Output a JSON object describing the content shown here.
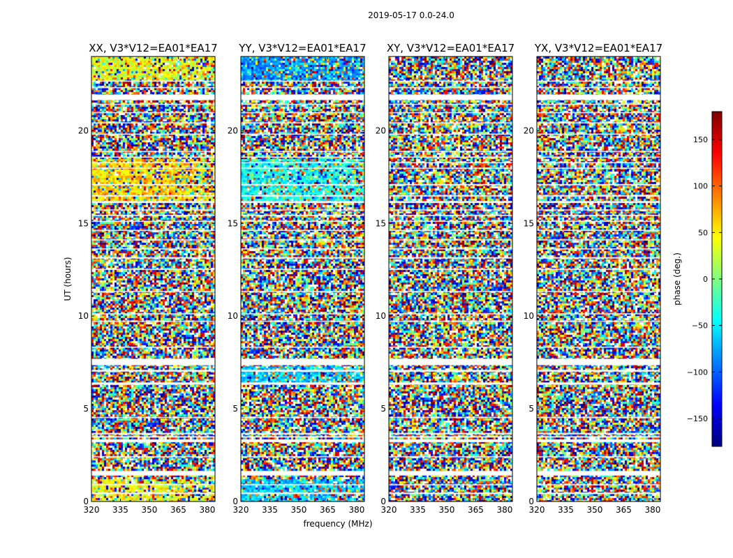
{
  "figure": {
    "suptitle": "2019-05-17 0.0-24.0"
  },
  "chart_data": {
    "type": "heatmap",
    "title": "2019-05-17 0.0-24.0",
    "xlabel": "frequency (MHz)",
    "ylabel": "UT (hours)",
    "xlim": [
      320,
      384
    ],
    "ylim": [
      0,
      24
    ],
    "xticks": [
      320,
      335,
      350,
      365,
      380
    ],
    "yticks": [
      0,
      5,
      10,
      15,
      20
    ],
    "colorbar": {
      "label": "phase (deg.)",
      "range": [
        -180,
        180
      ],
      "ticks": [
        -150,
        -100,
        -50,
        0,
        50,
        100,
        150
      ],
      "tick_labels": [
        "−150",
        "−100",
        "−50",
        "0",
        "50",
        "100",
        "150"
      ],
      "colormap": "jet",
      "colors": [
        "#00007f",
        "#0000ff",
        "#007fff",
        "#00ffff",
        "#7fff7f",
        "#ffff00",
        "#ff7f00",
        "#ff0000",
        "#7f0000"
      ]
    },
    "panels": [
      {
        "title": "XX, V3*V12=EA01*EA17",
        "coherent_bands": [
          {
            "t_start": 0.0,
            "t_end": 1.3,
            "mean_phase_deg": 40
          },
          {
            "t_start": 16.2,
            "t_end": 18.5,
            "mean_phase_deg": 60
          },
          {
            "t_start": 22.7,
            "t_end": 24.0,
            "mean_phase_deg": 35
          }
        ]
      },
      {
        "title": "YY, V3*V12=EA01*EA17",
        "coherent_bands": [
          {
            "t_start": 0.0,
            "t_end": 1.3,
            "mean_phase_deg": -60
          },
          {
            "t_start": 6.5,
            "t_end": 7.3,
            "mean_phase_deg": -60
          },
          {
            "t_start": 16.2,
            "t_end": 18.5,
            "mean_phase_deg": -40
          },
          {
            "t_start": 22.7,
            "t_end": 24.0,
            "mean_phase_deg": -80
          }
        ]
      },
      {
        "title": "XY, V3*V12=EA01*EA17",
        "coherent_bands": []
      },
      {
        "title": "YX, V3*V12=EA01*EA17",
        "coherent_bands": []
      }
    ],
    "flagged_gaps_ut_hours": [
      [
        0.4,
        0.48
      ],
      [
        0.88,
        0.93
      ],
      [
        1.4,
        1.65
      ],
      [
        2.4,
        2.44
      ],
      [
        3.2,
        3.35
      ],
      [
        3.45,
        3.52
      ],
      [
        3.62,
        3.7
      ],
      [
        4.52,
        4.56
      ],
      [
        6.3,
        6.42
      ],
      [
        7.0,
        7.1
      ],
      [
        7.35,
        7.7
      ],
      [
        8.3,
        8.35
      ],
      [
        9.7,
        9.75
      ],
      [
        10.1,
        10.15
      ],
      [
        11.3,
        11.35
      ],
      [
        12.5,
        12.55
      ],
      [
        13.1,
        13.18
      ],
      [
        13.6,
        13.65
      ],
      [
        14.1,
        14.14
      ],
      [
        14.6,
        14.65
      ],
      [
        15.1,
        15.14
      ],
      [
        15.4,
        15.46
      ],
      [
        15.7,
        15.75
      ],
      [
        16.1,
        16.2
      ],
      [
        16.45,
        16.52
      ],
      [
        17.05,
        17.12
      ],
      [
        17.95,
        18.0
      ],
      [
        18.25,
        18.3
      ],
      [
        18.55,
        18.6
      ],
      [
        18.85,
        18.9
      ],
      [
        19.8,
        19.84
      ],
      [
        20.4,
        20.45
      ],
      [
        20.95,
        21.0
      ],
      [
        21.4,
        21.45
      ],
      [
        21.65,
        21.95
      ],
      [
        22.3,
        22.35
      ],
      [
        22.65,
        22.7
      ]
    ]
  }
}
